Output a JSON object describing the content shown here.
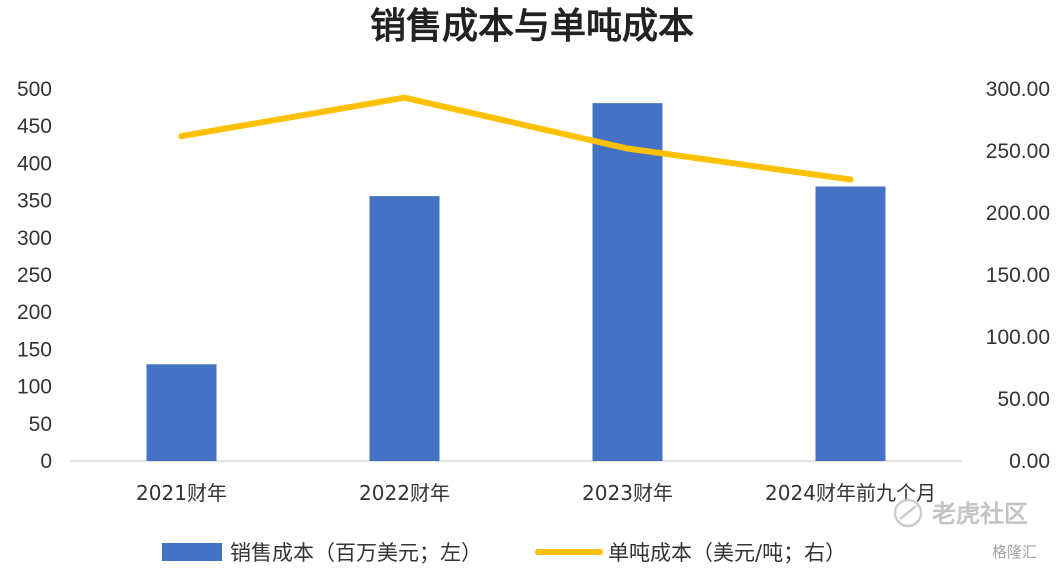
{
  "chart_data": {
    "type": "bar",
    "title": "销售成本与单吨成本",
    "categories": [
      "2021财年",
      "2022财年",
      "2023财年",
      "2024财年前九个月"
    ],
    "series": [
      {
        "name": "销售成本（百万美元；左）",
        "type": "bar",
        "axis": "left",
        "color": "#4472C4",
        "values": [
          130,
          356,
          481,
          369
        ]
      },
      {
        "name": "单吨成本（美元/吨；右）",
        "type": "line",
        "axis": "right",
        "color": "#FFC000",
        "values": [
          262,
          293,
          252,
          227
        ]
      }
    ],
    "y_left": {
      "min": 0,
      "max": 500,
      "step": 50,
      "tick_labels": [
        "0",
        "50",
        "100",
        "150",
        "200",
        "250",
        "300",
        "350",
        "400",
        "450",
        "500"
      ]
    },
    "y_right": {
      "min": 0,
      "max": 300,
      "step": 50,
      "tick_labels": [
        "0.00",
        "50.00",
        "100.00",
        "150.00",
        "200.00",
        "250.00",
        "300.00"
      ]
    },
    "grid": false,
    "legend_position": "bottom"
  },
  "watermark": {
    "text": "老虎社区",
    "secondary": "格隆汇"
  }
}
